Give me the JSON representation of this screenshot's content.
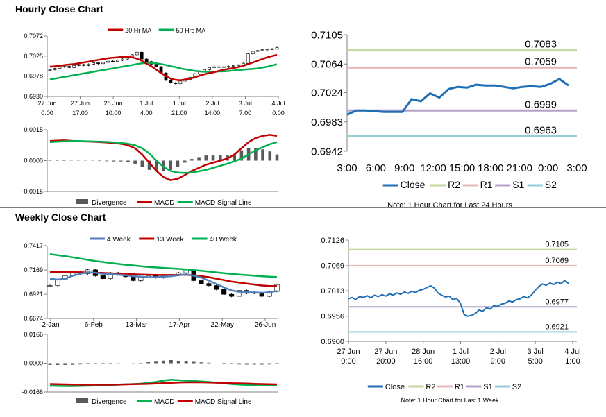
{
  "hourly": {
    "title": "Hourly Close Chart"
  },
  "weekly": {
    "title": "Weekly Close Chart"
  },
  "colors": {
    "close": "#1f6db5",
    "r2": "#c3d69b",
    "r1": "#e6b9b8",
    "s1": "#b3a2c7",
    "s2": "#93cddd",
    "ma_red": "#c00000",
    "ma_green": "#00b050",
    "ma_blue": "#4f81bd",
    "divergence": "#595959",
    "candle": "#000000"
  },
  "chart_data": [
    {
      "id": "hourly_price",
      "type": "candlestick",
      "legend": [
        "20 Hr MA",
        "50 Hrs MA"
      ],
      "legend_position": "top",
      "ylim": [
        0.693,
        0.7072
      ],
      "yticks": [
        "0.7072",
        "0.7025",
        "0.6978",
        "0.6930"
      ],
      "xticks": [
        [
          "27 Jun",
          "0:00"
        ],
        [
          "27 Jun",
          "17:00"
        ],
        [
          "28 Jun",
          "10:00"
        ],
        [
          "1 Jul",
          "4:00"
        ],
        [
          "1 Jul",
          "21:00"
        ],
        [
          "2 Jul",
          "14:00"
        ],
        [
          "3 Jul",
          "7:00"
        ],
        [
          "4 Jul",
          "0:00"
        ]
      ],
      "close": [
        0.6993,
        0.6996,
        0.6999,
        0.7001,
        0.6998,
        0.7003,
        0.7005,
        0.7003,
        0.7006,
        0.7009,
        0.7007,
        0.701,
        0.7013,
        0.7012,
        0.7015,
        0.7018,
        0.7022,
        0.7028,
        0.7034,
        0.7018,
        0.7012,
        0.7006,
        0.7,
        0.6985,
        0.6968,
        0.6962,
        0.696,
        0.6966,
        0.697,
        0.6975,
        0.6983,
        0.6988,
        0.6993,
        0.6998,
        0.7,
        0.7,
        0.6999,
        0.7001,
        0.7003,
        0.7004,
        0.7008,
        0.703,
        0.7036,
        0.7038,
        0.704,
        0.7041,
        0.7042,
        0.7045
      ],
      "ma20": [
        0.7,
        0.7001,
        0.7002,
        0.7004,
        0.7005,
        0.7006,
        0.7008,
        0.701,
        0.7012,
        0.7014,
        0.7016,
        0.7018,
        0.702,
        0.7021,
        0.7022,
        0.7023,
        0.7023,
        0.7022,
        0.7019,
        0.7014,
        0.7007,
        0.7001,
        0.6993,
        0.6985,
        0.6978,
        0.6972,
        0.6969,
        0.6968,
        0.697,
        0.6972,
        0.6975,
        0.6979,
        0.6982,
        0.6985,
        0.6987,
        0.699,
        0.6993,
        0.6995,
        0.6997,
        0.6999,
        0.7002,
        0.7006,
        0.701,
        0.7014,
        0.7018,
        0.7022,
        0.7025,
        0.7028
      ],
      "ma50": [
        0.697,
        0.6972,
        0.6974,
        0.6976,
        0.6978,
        0.698,
        0.6982,
        0.6984,
        0.6986,
        0.6988,
        0.699,
        0.6992,
        0.6994,
        0.6996,
        0.6998,
        0.7,
        0.7002,
        0.7004,
        0.7006,
        0.7008,
        0.7009,
        0.7009,
        0.7008,
        0.7006,
        0.7004,
        0.7001,
        0.6999,
        0.6996,
        0.6994,
        0.6992,
        0.699,
        0.6989,
        0.6988,
        0.6988,
        0.6988,
        0.6989,
        0.6989,
        0.699,
        0.6991,
        0.6992,
        0.6993,
        0.6994,
        0.6995,
        0.6996,
        0.6998,
        0.7,
        0.7003,
        0.7006
      ]
    },
    {
      "id": "hourly_macd",
      "type": "line",
      "legend": [
        "Divergence",
        "MACD",
        "MACD Signal Line"
      ],
      "legend_position": "bottom",
      "ylim": [
        -0.0015,
        0.0015
      ],
      "yticks": [
        "0.0015",
        "0.0000",
        "-0.0015"
      ],
      "macd": [
        0.00095,
        0.00097,
        0.00098,
        0.00096,
        0.00094,
        0.00093,
        0.00092,
        0.0009,
        0.00088,
        0.00085,
        0.00082,
        0.00075,
        0.0006,
        0.0003,
        -0.0001,
        -0.0005,
        -0.0008,
        -0.00095,
        -0.00088,
        -0.0007,
        -0.0005,
        -0.00035,
        -0.0002,
        -0.0001,
        0.0,
        0.0001,
        0.0003,
        0.0006,
        0.0009,
        0.0011,
        0.0012,
        0.00125,
        0.0012
      ],
      "signal": [
        0.0009,
        0.00092,
        0.00094,
        0.00095,
        0.00095,
        0.00094,
        0.00093,
        0.00092,
        0.00091,
        0.00089,
        0.00086,
        0.00082,
        0.00075,
        0.0006,
        0.00035,
        0.0,
        -0.0003,
        -0.0005,
        -0.00058,
        -0.0006,
        -0.00058,
        -0.00052,
        -0.00045,
        -0.00035,
        -0.00025,
        -0.00015,
        -3e-05,
        0.0001,
        0.0003,
        0.0005,
        0.00065,
        0.0008,
        0.0009
      ]
    },
    {
      "id": "hourly_pivot",
      "type": "line",
      "legend": [
        "Close",
        "R2",
        "R1",
        "S1",
        "S2"
      ],
      "legend_position": "bottom",
      "ylim": [
        0.6942,
        0.7105
      ],
      "yticks": [
        "0.7105",
        "0.7064",
        "0.7024",
        "0.6983",
        "0.6942"
      ],
      "xticks": [
        "3:00",
        "6:00",
        "9:00",
        "12:00",
        "15:00",
        "18:00",
        "21:00",
        "0:00",
        "3:00"
      ],
      "close": [
        0.6993,
        0.6999,
        0.6999,
        0.6998,
        0.6997,
        0.6997,
        0.6997,
        0.7015,
        0.7012,
        0.7023,
        0.7017,
        0.7029,
        0.7032,
        0.7031,
        0.7035,
        0.7034,
        0.7034,
        0.7032,
        0.703,
        0.7032,
        0.7033,
        0.7032,
        0.7036,
        0.7043,
        0.7034
      ],
      "levels": {
        "R2": 0.7083,
        "R1": 0.7059,
        "S1": 0.6999,
        "S2": 0.6963
      },
      "level_labels": {
        "R2": "0.7083",
        "R1": "0.7059",
        "S1": "0.6999",
        "S2": "0.6963"
      },
      "note": "Note: 1 Hour Chart for Last 24 Hours"
    },
    {
      "id": "weekly_price",
      "type": "candlestick",
      "legend": [
        "4 Week",
        "13 Week",
        "40 Week"
      ],
      "legend_position": "top",
      "ylim": [
        0.6674,
        0.7417
      ],
      "yticks": [
        "0.7417",
        "0.7169",
        "0.6921",
        "0.6674"
      ],
      "xticks": [
        "2-Jan",
        "6-Feb",
        "13-Mar",
        "17-Apr",
        "22-May",
        "26-Jun"
      ],
      "close": [
        0.701,
        0.707,
        0.711,
        0.715,
        0.713,
        0.717,
        0.711,
        0.708,
        0.714,
        0.712,
        0.71,
        0.706,
        0.71,
        0.711,
        0.709,
        0.711,
        0.712,
        0.714,
        0.717,
        0.706,
        0.703,
        0.701,
        0.697,
        0.692,
        0.69,
        0.696,
        0.693,
        0.694,
        0.69,
        0.695,
        0.702
      ],
      "ma4": [
        0.708,
        0.707,
        0.708,
        0.711,
        0.713,
        0.7145,
        0.714,
        0.713,
        0.7125,
        0.712,
        0.7115,
        0.7105,
        0.71,
        0.7095,
        0.7095,
        0.71,
        0.7105,
        0.7115,
        0.7125,
        0.711,
        0.709,
        0.706,
        0.7025,
        0.699,
        0.696,
        0.6945,
        0.694,
        0.694,
        0.6935,
        0.694,
        0.6955
      ],
      "ma13": [
        0.715,
        0.715,
        0.7148,
        0.7146,
        0.7145,
        0.7143,
        0.714,
        0.7138,
        0.7135,
        0.713,
        0.7128,
        0.7125,
        0.7122,
        0.712,
        0.7118,
        0.7117,
        0.7117,
        0.7118,
        0.712,
        0.7115,
        0.7105,
        0.7095,
        0.708,
        0.7065,
        0.705,
        0.704,
        0.703,
        0.702,
        0.701,
        0.7005,
        0.7005
      ],
      "ma40": [
        0.733,
        0.732,
        0.731,
        0.7298,
        0.7285,
        0.7272,
        0.726,
        0.725,
        0.724,
        0.723,
        0.7222,
        0.7215,
        0.7207,
        0.72,
        0.7195,
        0.719,
        0.7185,
        0.718,
        0.7175,
        0.7168,
        0.716,
        0.7152,
        0.7144,
        0.7136,
        0.7128,
        0.7122,
        0.7116,
        0.711,
        0.7105,
        0.71,
        0.7096
      ]
    },
    {
      "id": "weekly_macd",
      "type": "line",
      "legend": [
        "Divergence",
        "MACD",
        "MACD Signal Line"
      ],
      "legend_position": "bottom",
      "ylim": [
        -0.0166,
        0.0166
      ],
      "yticks": [
        "0.0166",
        "0.0000",
        "-0.0166"
      ],
      "macd": [
        -0.013,
        -0.0131,
        -0.0132,
        -0.0132,
        -0.0131,
        -0.013,
        -0.0129,
        -0.0128,
        -0.0126,
        -0.0124,
        -0.0122,
        -0.012,
        -0.0118,
        -0.0113,
        -0.0108,
        -0.01,
        -0.0095,
        -0.0098,
        -0.01,
        -0.0102,
        -0.0105,
        -0.0108,
        -0.0112,
        -0.0116,
        -0.012,
        -0.0123,
        -0.0125,
        -0.0127,
        -0.0128,
        -0.0128,
        -0.0126
      ],
      "signal": [
        -0.012,
        -0.0121,
        -0.0122,
        -0.0123,
        -0.0124,
        -0.0124,
        -0.0124,
        -0.0124,
        -0.0124,
        -0.0123,
        -0.0122,
        -0.0121,
        -0.012,
        -0.0119,
        -0.0117,
        -0.0115,
        -0.0113,
        -0.0111,
        -0.011,
        -0.011,
        -0.011,
        -0.0111,
        -0.0112,
        -0.0113,
        -0.0115,
        -0.0116,
        -0.0117,
        -0.0119,
        -0.012,
        -0.0121,
        -0.0122
      ]
    },
    {
      "id": "weekly_pivot",
      "type": "line",
      "legend": [
        "Close",
        "R2",
        "R1",
        "S1",
        "S2"
      ],
      "legend_position": "bottom",
      "ylim": [
        0.69,
        0.7126
      ],
      "yticks": [
        "0.7126",
        "0.7069",
        "0.7013",
        "0.6956",
        "0.6900"
      ],
      "xticks": [
        [
          "27 Jun",
          "0:00"
        ],
        [
          "27 Jun",
          "20:00"
        ],
        [
          "28 Jun",
          "16:00"
        ],
        [
          "1 Jul",
          "13:00"
        ],
        [
          "2 Jul",
          "9:00"
        ],
        [
          "3 Jul",
          "5:00"
        ],
        [
          "4 Jul",
          "1:00"
        ]
      ],
      "close": [
        0.6995,
        0.6998,
        0.6993,
        0.7,
        0.6998,
        0.7002,
        0.6997,
        0.7003,
        0.7,
        0.7004,
        0.7001,
        0.7006,
        0.7003,
        0.7008,
        0.7005,
        0.701,
        0.7007,
        0.7012,
        0.7009,
        0.7014,
        0.7016,
        0.702,
        0.7024,
        0.7019,
        0.7008,
        0.7003,
        0.6999,
        0.7001,
        0.6993,
        0.6996,
        0.6985,
        0.696,
        0.6956,
        0.6958,
        0.6962,
        0.697,
        0.6967,
        0.6975,
        0.6972,
        0.698,
        0.6978,
        0.6983,
        0.6985,
        0.699,
        0.6988,
        0.6993,
        0.6995,
        0.7,
        0.6997,
        0.7003,
        0.7013,
        0.7022,
        0.7028,
        0.7025,
        0.703,
        0.7027,
        0.7032,
        0.7029,
        0.7036,
        0.7029
      ],
      "levels": {
        "R2": 0.7105,
        "R1": 0.7069,
        "S1": 0.6977,
        "S2": 0.6921
      },
      "level_labels": {
        "R2": "0.7105",
        "R1": "0.7069",
        "S1": "0.6977",
        "S2": "0.6921"
      },
      "note": "Note: 1 Hour Chart for Last 1 Week"
    }
  ]
}
